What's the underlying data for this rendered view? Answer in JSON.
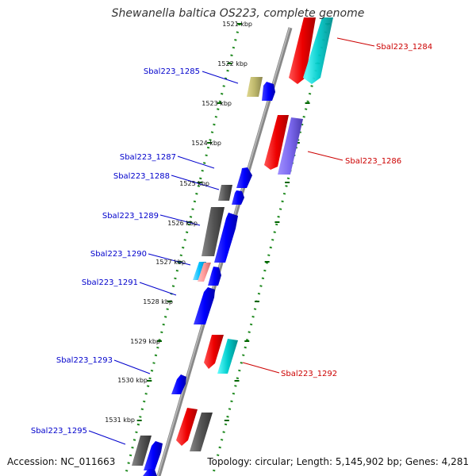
{
  "title": "Shewanella baltica OS223, complete genome",
  "footer": {
    "accession": "Accession: NC_011663",
    "topology": "Topology: circular; Length: 5,145,902 bp; Genes: 4,281"
  },
  "colors": {
    "backbone": "#888888",
    "track_dots": "#228B22",
    "label_left": "#0000cc",
    "label_right": "#cc0000",
    "ticks": "#006400"
  },
  "ticks": [
    {
      "kbp": 1521,
      "label": "1521 kbp"
    },
    {
      "kbp": 1522,
      "label": "1522 kbp"
    },
    {
      "kbp": 1523,
      "label": "1523 kbp"
    },
    {
      "kbp": 1524,
      "label": "1524 kbp"
    },
    {
      "kbp": 1525,
      "label": "1525 kbp"
    },
    {
      "kbp": 1526,
      "label": "1526 kbp"
    },
    {
      "kbp": 1527,
      "label": "1527 kbp"
    },
    {
      "kbp": 1528,
      "label": "1528 kbp"
    },
    {
      "kbp": 1529,
      "label": "1529 kbp"
    },
    {
      "kbp": 1530,
      "label": "1530 kbp"
    },
    {
      "kbp": 1531,
      "label": "1531 kbp"
    }
  ],
  "gene_labels": [
    {
      "text": "Sbal223_1284",
      "side": "right"
    },
    {
      "text": "Sbal223_1285",
      "side": "left"
    },
    {
      "text": "Sbal223_1286",
      "side": "right"
    },
    {
      "text": "Sbal223_1287",
      "side": "left"
    },
    {
      "text": "Sbal223_1288",
      "side": "left"
    },
    {
      "text": "Sbal223_1289",
      "side": "left"
    },
    {
      "text": "Sbal223_1290",
      "side": "left"
    },
    {
      "text": "Sbal223_1291",
      "side": "left"
    },
    {
      "text": "Sbal223_1293",
      "side": "left"
    },
    {
      "text": "Sbal223_1292",
      "side": "right"
    },
    {
      "text": "Sbal223_1295",
      "side": "left"
    }
  ],
  "features": [
    {
      "name": "gene-red-1284",
      "color": "#ff0000",
      "strand": "outer"
    },
    {
      "name": "gene-cyan-1284",
      "color": "#00cccc",
      "strand": "outer"
    },
    {
      "name": "gene-khaki-1285",
      "color": "#bdb76b",
      "strand": "inner"
    },
    {
      "name": "gene-blue-1285",
      "color": "#0000ff",
      "strand": "inner"
    },
    {
      "name": "gene-red-1286",
      "color": "#ff0000",
      "strand": "outer"
    },
    {
      "name": "gene-purple-1286",
      "color": "#7b68ee",
      "strand": "outer"
    },
    {
      "name": "gene-blue-1287",
      "color": "#0000ff",
      "strand": "inner"
    },
    {
      "name": "gene-gray-1288",
      "color": "#555555",
      "strand": "inner"
    },
    {
      "name": "gene-blue-1288",
      "color": "#0000ff",
      "strand": "inner"
    },
    {
      "name": "gene-gray-1289",
      "color": "#555555",
      "strand": "inner"
    },
    {
      "name": "gene-blue-1289",
      "color": "#0000ff",
      "strand": "inner"
    },
    {
      "name": "gene-cyan-1290",
      "color": "#00bfff",
      "strand": "inner"
    },
    {
      "name": "gene-pink-1290",
      "color": "#ff9999",
      "strand": "inner"
    },
    {
      "name": "gene-blue-1290",
      "color": "#0000ff",
      "strand": "inner"
    },
    {
      "name": "gene-blue-1291",
      "color": "#0000ff",
      "strand": "inner"
    },
    {
      "name": "gene-red-1292",
      "color": "#ff0000",
      "strand": "outer"
    },
    {
      "name": "gene-cyan-1292",
      "color": "#00cccc",
      "strand": "outer"
    },
    {
      "name": "gene-blue-1293",
      "color": "#0000ff",
      "strand": "inner"
    },
    {
      "name": "gene-red-1294",
      "color": "#ff0000",
      "strand": "outer"
    },
    {
      "name": "gene-gray-1294",
      "color": "#555555",
      "strand": "outer"
    },
    {
      "name": "gene-gray-1295",
      "color": "#555555",
      "strand": "inner"
    },
    {
      "name": "gene-blue-1295",
      "color": "#0000ff",
      "strand": "inner"
    },
    {
      "name": "gene-blue-1296",
      "color": "#0000ff",
      "strand": "inner"
    }
  ]
}
